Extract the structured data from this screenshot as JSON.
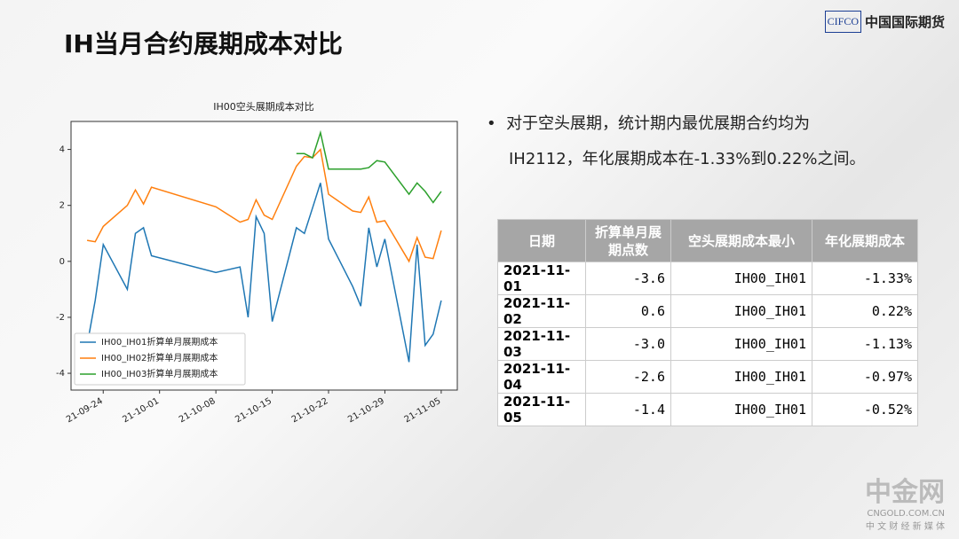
{
  "slide_title": "IH当月合约展期成本对比",
  "logo": {
    "mark": "CIFCO",
    "name": "中国国际期货"
  },
  "bullet": [
    "对于空头展期，统计期内最优展期合约均为",
    "IH2112，年化展期成本在-1.33%到0.22%之间。"
  ],
  "chart_data": {
    "type": "line",
    "title": "IH00空头展期成本对比",
    "x": [
      "2021-09-22",
      "2021-09-23",
      "2021-09-24",
      "2021-09-27",
      "2021-09-28",
      "2021-09-29",
      "2021-09-30",
      "2021-10-08",
      "2021-10-11",
      "2021-10-12",
      "2021-10-13",
      "2021-10-14",
      "2021-10-15",
      "2021-10-18",
      "2021-10-19",
      "2021-10-20",
      "2021-10-21",
      "2021-10-22",
      "2021-10-25",
      "2021-10-26",
      "2021-10-27",
      "2021-10-28",
      "2021-10-29",
      "2021-11-01",
      "2021-11-02",
      "2021-11-03",
      "2021-11-04",
      "2021-11-05"
    ],
    "series": [
      {
        "name": "IH00_IH01折算单月展期成本",
        "color": "#1f77b4",
        "values": [
          -3.0,
          -1.4,
          0.6,
          -1.0,
          1.0,
          1.2,
          0.2,
          -0.4,
          -0.2,
          -2.0,
          1.6,
          1.0,
          -2.15,
          1.2,
          1.0,
          1.9,
          2.8,
          0.8,
          -0.9,
          -1.6,
          1.2,
          -0.2,
          0.8,
          -3.6,
          0.6,
          -3.0,
          -2.6,
          -1.4
        ]
      },
      {
        "name": "IH00_IH02折算单月展期成本",
        "color": "#ff7f0e",
        "values": [
          0.75,
          0.7,
          1.25,
          2.0,
          2.55,
          2.05,
          2.65,
          1.95,
          1.4,
          1.5,
          2.2,
          1.65,
          1.5,
          3.4,
          3.75,
          3.7,
          4.0,
          2.4,
          1.8,
          1.75,
          2.3,
          1.4,
          1.45,
          0.0,
          0.85,
          0.15,
          0.1,
          1.1
        ]
      },
      {
        "name": "IH00_IH03折算单月展期成本",
        "color": "#2ca02c",
        "values": [
          null,
          null,
          null,
          null,
          null,
          null,
          null,
          null,
          null,
          null,
          null,
          null,
          null,
          3.85,
          3.85,
          3.7,
          4.6,
          3.3,
          3.3,
          3.3,
          3.35,
          3.6,
          3.55,
          2.4,
          2.8,
          2.5,
          2.1,
          2.5
        ]
      }
    ],
    "xlim": [
      "2021-09-20",
      "2021-11-07"
    ],
    "xticks": [
      {
        "value": "2021-09-24",
        "label": "21-09-24"
      },
      {
        "value": "2021-10-01",
        "label": "21-10-01"
      },
      {
        "value": "2021-10-08",
        "label": "21-10-08"
      },
      {
        "value": "2021-10-15",
        "label": "21-10-15"
      },
      {
        "value": "2021-10-22",
        "label": "21-10-22"
      },
      {
        "value": "2021-10-29",
        "label": "21-10-29"
      },
      {
        "value": "2021-11-05",
        "label": "21-11-05"
      }
    ],
    "ylim": [
      -4.6,
      5
    ],
    "yticks": [
      4,
      2,
      0,
      -2,
      -4
    ],
    "legend": "lower left"
  },
  "table": {
    "header": [
      "日期",
      "折算单月展期点数",
      "空头展期成本最小",
      "年化展期成本"
    ],
    "rows": [
      [
        "2021-11-01",
        "-3.6",
        "IH00_IH01",
        "-1.33%"
      ],
      [
        "2021-11-02",
        "0.6",
        "IH00_IH01",
        "0.22%"
      ],
      [
        "2021-11-03",
        "-3.0",
        "IH00_IH01",
        "-1.13%"
      ],
      [
        "2021-11-04",
        "-2.6",
        "IH00_IH01",
        "-0.97%"
      ],
      [
        "2021-11-05",
        "-1.4",
        "IH00_IH01",
        "-0.52%"
      ]
    ]
  },
  "watermark": {
    "name": "中金网",
    "site": "CNGOLD.COM.CN",
    "slogan": "中 文 财 经 新 媒 体"
  }
}
